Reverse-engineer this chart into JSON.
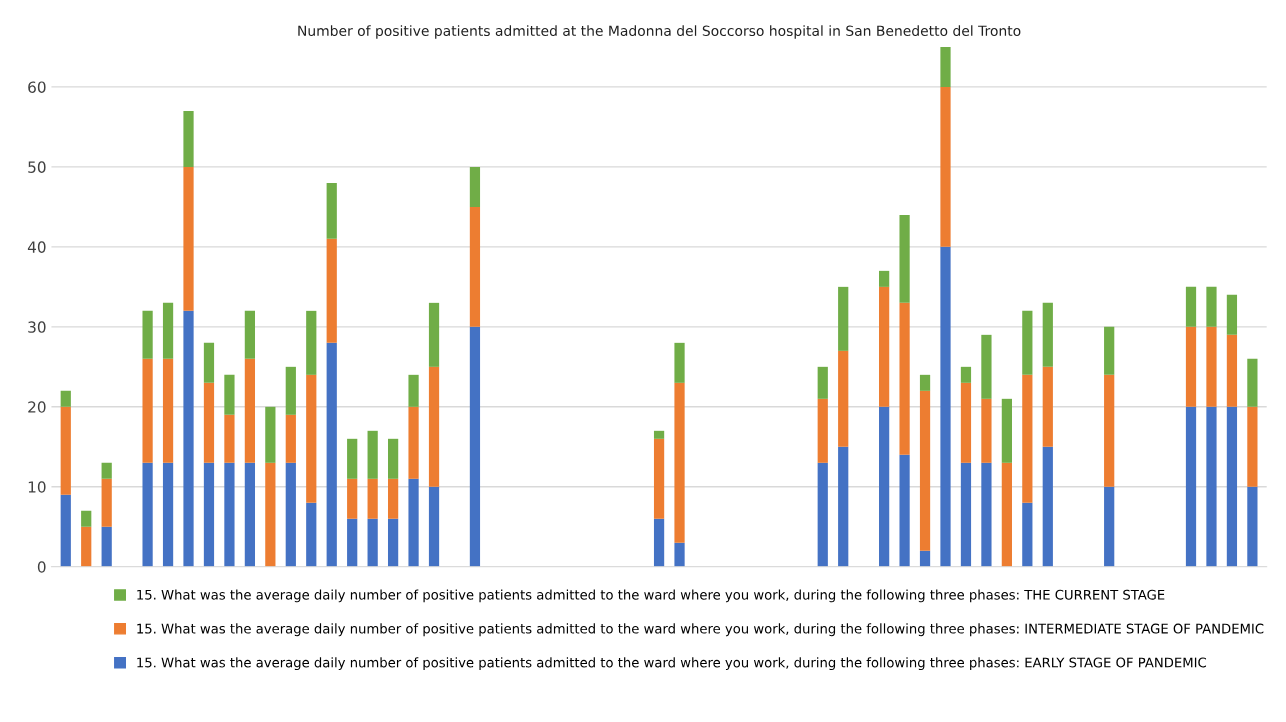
{
  "chart_data": {
    "type": "bar",
    "stacked": true,
    "title": "Number of positive patients admitted at the Madonna del Soccorso hospital in San Benedetto del Tronto",
    "categories": [
      null,
      null,
      null,
      null,
      null,
      null,
      null,
      null,
      null,
      null,
      null,
      null,
      null,
      null,
      null,
      null,
      null,
      null,
      null,
      null,
      null,
      null,
      null,
      null,
      null,
      null,
      null,
      null,
      null,
      null,
      null,
      null,
      null,
      null,
      null,
      null,
      null,
      null,
      null,
      null,
      null,
      null,
      null,
      null,
      null,
      null,
      null,
      null,
      null,
      null,
      null,
      null,
      null,
      null,
      null,
      null,
      null,
      null,
      null
    ],
    "series": [
      {
        "name": "15. What was the average daily number of positive patients admitted to the ward where you work, during the following three phases: EARLY STAGE OF PANDEMIC",
        "color": "#4472c4",
        "values": [
          9,
          0,
          5,
          null,
          13,
          13,
          32,
          13,
          13,
          13,
          0,
          13,
          8,
          28,
          6,
          6,
          6,
          11,
          10,
          null,
          30,
          null,
          null,
          null,
          null,
          null,
          null,
          null,
          null,
          6,
          3,
          null,
          null,
          null,
          null,
          null,
          null,
          13,
          15,
          null,
          20,
          14,
          2,
          40,
          13,
          13,
          0,
          8,
          15,
          null,
          null,
          10,
          null,
          null,
          null,
          20,
          20,
          20,
          10
        ]
      },
      {
        "name": "15. What was the average daily number of positive patients admitted to the ward where you work, during the following three phases: INTERMEDIATE STAGE OF PANDEMIC",
        "color": "#ed7d31",
        "values": [
          11,
          5,
          6,
          null,
          13,
          13,
          18,
          10,
          6,
          13,
          13,
          6,
          16,
          13,
          5,
          5,
          5,
          9,
          15,
          null,
          15,
          null,
          null,
          null,
          null,
          null,
          null,
          null,
          null,
          10,
          20,
          null,
          null,
          null,
          null,
          null,
          null,
          8,
          12,
          null,
          15,
          19,
          20,
          20,
          10,
          8,
          13,
          16,
          10,
          null,
          null,
          14,
          null,
          null,
          null,
          10,
          10,
          9,
          10
        ]
      },
      {
        "name": "15. What was the average daily number of positive patients admitted to the ward where you work, during the following three phases: THE CURRENT STAGE",
        "color": "#70ad47",
        "values": [
          2,
          2,
          2,
          null,
          6,
          7,
          7,
          5,
          5,
          6,
          7,
          6,
          8,
          7,
          5,
          6,
          5,
          4,
          8,
          null,
          5,
          null,
          null,
          null,
          null,
          null,
          null,
          null,
          null,
          1,
          5,
          null,
          null,
          null,
          null,
          null,
          null,
          4,
          8,
          null,
          2,
          11,
          2,
          5,
          2,
          8,
          8,
          8,
          8,
          null,
          null,
          6,
          null,
          null,
          null,
          5,
          5,
          5,
          6
        ]
      }
    ],
    "ylim": [
      0,
      65
    ],
    "yticks": [
      0,
      10,
      20,
      30,
      40,
      50,
      60
    ],
    "grid": "y",
    "legend": "bottom"
  }
}
